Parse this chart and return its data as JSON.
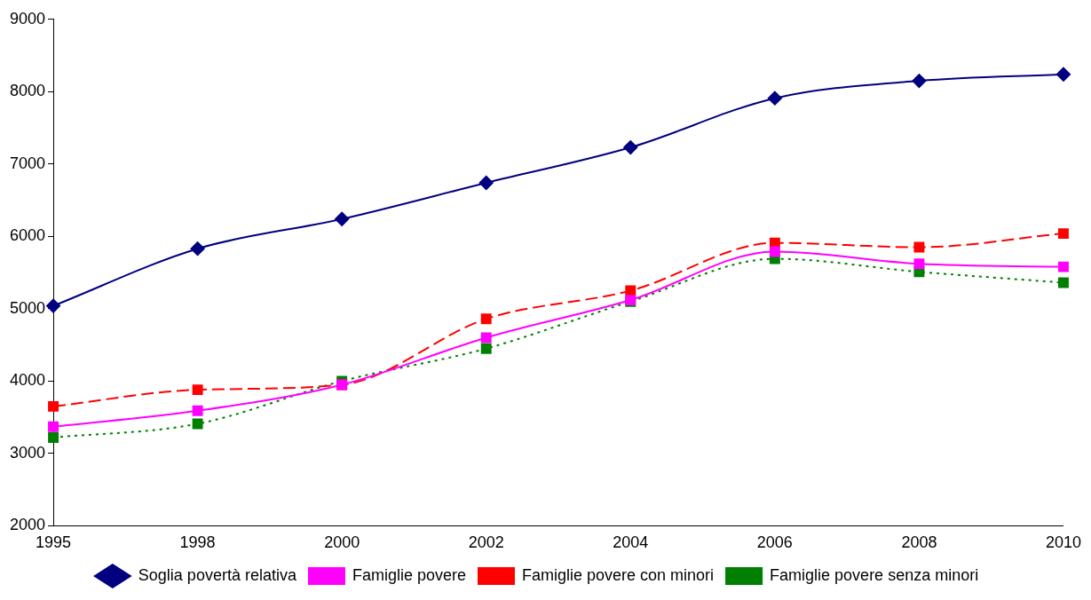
{
  "chart_data": {
    "type": "line",
    "categories": [
      "1995",
      "1998",
      "2000",
      "2002",
      "2004",
      "2006",
      "2008",
      "2010"
    ],
    "series": [
      {
        "name": "Soglia povertà relativa",
        "color": "#000080",
        "marker": "diamond",
        "line_style": "solid",
        "values": [
          5040,
          5830,
          6240,
          6740,
          7230,
          7910,
          8150,
          8240
        ]
      },
      {
        "name": "Famiglie povere",
        "color": "#ff00ff",
        "marker": "square",
        "line_style": "solid",
        "values": [
          3370,
          3590,
          3950,
          4600,
          5120,
          5790,
          5620,
          5580
        ]
      },
      {
        "name": "Famiglie povere con minori",
        "color": "#ff0000",
        "marker": "square",
        "line_style": "dashed",
        "values": [
          3650,
          3880,
          3950,
          4860,
          5250,
          5910,
          5850,
          6040
        ]
      },
      {
        "name": "Famiglie povere senza minori",
        "color": "#008000",
        "marker": "square",
        "line_style": "dotted",
        "values": [
          3220,
          3410,
          4000,
          4450,
          5100,
          5690,
          5510,
          5360
        ]
      }
    ],
    "ylim": [
      2000,
      9000
    ],
    "yticks": [
      2000,
      3000,
      4000,
      5000,
      6000,
      7000,
      8000,
      9000
    ],
    "grid": false,
    "legend": "bottom"
  }
}
